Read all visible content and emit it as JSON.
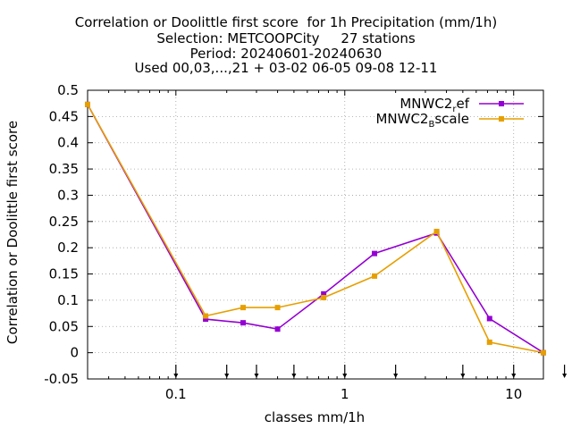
{
  "chart_data": {
    "type": "line",
    "title_lines": [
      "Correlation or Doolittle first score  for 1h Precipitation (mm/1h)",
      "Selection: METCOOPCity     27 stations",
      "Period: 20240601-20240630",
      "Used 00,03,...,21 + 03-02 06-05 09-08 12-11"
    ],
    "xlabel": "classes mm/1h",
    "ylabel": "Correlation or Doolittle first score",
    "x_scale": "log",
    "xlim": [
      0.03,
      15
    ],
    "ylim": [
      -0.05,
      0.5
    ],
    "grid": true,
    "legend_position": "top-right",
    "y_ticks": [
      "-0.05",
      "0",
      "0.05",
      "0.1",
      "0.15",
      "0.2",
      "0.25",
      "0.3",
      "0.35",
      "0.4",
      "0.45",
      "0.5"
    ],
    "y_tick_values": [
      -0.05,
      0,
      0.05,
      0.1,
      0.15,
      0.2,
      0.25,
      0.3,
      0.35,
      0.4,
      0.45,
      0.5
    ],
    "x_ticks": [
      "0.1",
      "1",
      "10"
    ],
    "x_tick_values": [
      0.1,
      1,
      10
    ],
    "class_markers": [
      0.1,
      0.2,
      0.3,
      0.5,
      1,
      2,
      5,
      10,
      20
    ],
    "series": [
      {
        "label_main": "MNWC2",
        "label_sub": "r",
        "label_tail": "ef",
        "color": "#9400d3",
        "x": [
          0.03,
          0.15,
          0.25,
          0.4,
          0.75,
          1.5,
          3.5,
          7.2,
          15
        ],
        "y": [
          0.473,
          0.064,
          0.057,
          0.045,
          0.112,
          0.189,
          0.228,
          0.065,
          0.0
        ]
      },
      {
        "label_main": "MNWC2",
        "label_sub": "B",
        "label_tail": "scale",
        "color": "#e69f00",
        "x": [
          0.03,
          0.15,
          0.25,
          0.4,
          0.75,
          1.5,
          3.5,
          7.2,
          15
        ],
        "y": [
          0.473,
          0.07,
          0.086,
          0.086,
          0.105,
          0.146,
          0.231,
          0.02,
          0.0
        ]
      }
    ]
  }
}
